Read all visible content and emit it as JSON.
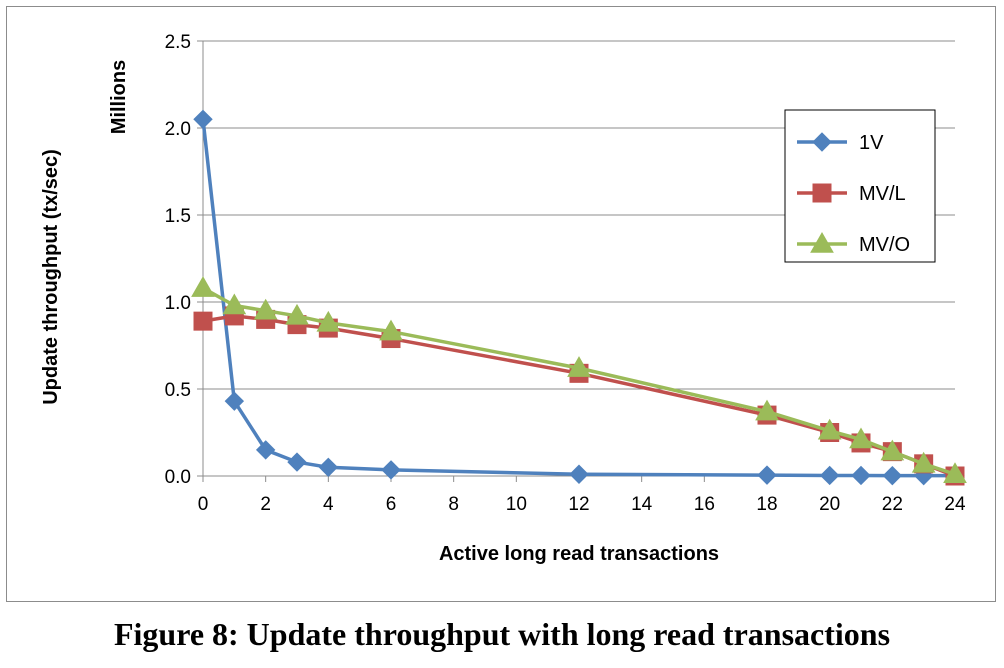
{
  "caption": "Figure 8: Update throughput with long read transactions",
  "chart_data": {
    "type": "line",
    "title": "",
    "xlabel": "Active long read transactions",
    "ylabel": "Update throughput (tx/sec)",
    "yunit": "Millions",
    "xlim": [
      0,
      24
    ],
    "ylim": [
      0,
      2.5
    ],
    "xticks": [
      0,
      2,
      4,
      6,
      8,
      10,
      12,
      14,
      16,
      18,
      20,
      22,
      24
    ],
    "yticks": [
      0.0,
      0.5,
      1.0,
      1.5,
      2.0,
      2.5
    ],
    "ytick_labels": [
      "0.0",
      "0.5",
      "1.0",
      "1.5",
      "2.0",
      "2.5"
    ],
    "grid": "horizontal",
    "legend": "right",
    "series": [
      {
        "name": "1V",
        "color": "#4f81bd",
        "marker": "diamond",
        "x": [
          0,
          1,
          2,
          3,
          4,
          6,
          12,
          18,
          20,
          21,
          22,
          23,
          24
        ],
        "y": [
          2.05,
          0.43,
          0.15,
          0.08,
          0.05,
          0.035,
          0.01,
          0.005,
          0.003,
          0.003,
          0.002,
          0.002,
          0.002
        ]
      },
      {
        "name": "MV/L",
        "color": "#c0504d",
        "marker": "square",
        "x": [
          0,
          1,
          2,
          3,
          4,
          6,
          12,
          18,
          20,
          21,
          22,
          23,
          24
        ],
        "y": [
          0.89,
          0.92,
          0.9,
          0.87,
          0.85,
          0.79,
          0.59,
          0.35,
          0.25,
          0.19,
          0.14,
          0.07,
          0.0
        ]
      },
      {
        "name": "MV/O",
        "color": "#9bbb59",
        "marker": "triangle",
        "x": [
          0,
          1,
          2,
          3,
          4,
          6,
          12,
          18,
          20,
          21,
          22,
          23,
          24
        ],
        "y": [
          1.08,
          0.98,
          0.95,
          0.92,
          0.88,
          0.83,
          0.62,
          0.37,
          0.26,
          0.21,
          0.14,
          0.07,
          0.01
        ]
      }
    ]
  }
}
